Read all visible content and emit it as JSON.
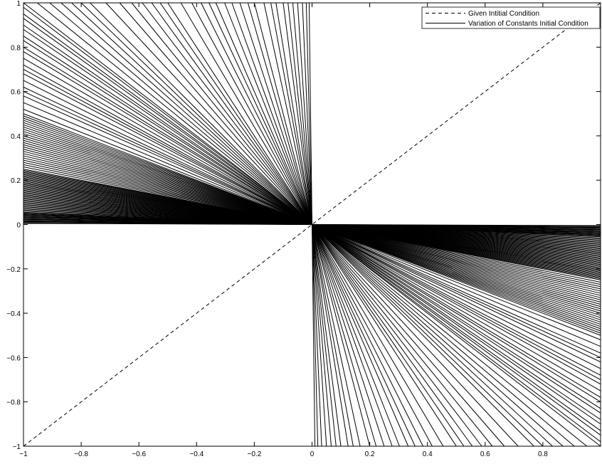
{
  "chart_data": {
    "type": "line",
    "title": "",
    "xlabel": "",
    "ylabel": "",
    "xlim": [
      -1,
      1
    ],
    "ylim": [
      -1,
      1
    ],
    "grid": false,
    "legend_placement": "top-right",
    "x_ticks": [
      "−1",
      "−0.8",
      "−0.6",
      "−0.4",
      "−0.2",
      "0",
      "0.2",
      "0.4",
      "0.6",
      "0.8"
    ],
    "x_tick_values": [
      -1,
      -0.8,
      -0.6,
      -0.4,
      -0.2,
      0,
      0.2,
      0.4,
      0.6,
      0.8
    ],
    "y_ticks": [
      "1",
      "0.8",
      "0.6",
      "0.4",
      "0.2",
      "0",
      "−0.2",
      "−0.4",
      "−0.6",
      "−0.8",
      "−1"
    ],
    "y_tick_values": [
      1,
      0.8,
      0.6,
      0.4,
      0.2,
      0,
      -0.2,
      -0.4,
      -0.6,
      -0.8,
      -1
    ],
    "series": [
      {
        "name": "Given Intitial Condition",
        "style": "dashed",
        "color": "#000000",
        "x": [
          -1,
          1
        ],
        "y": [
          -1,
          1
        ]
      },
      {
        "name": "Variation of Constants Initial Condition",
        "style": "solid",
        "color": "#000000",
        "family": "lines y = m·x through origin, m < 0",
        "slopes": [
          -0.005,
          -0.008,
          -0.012,
          -0.015,
          -0.018,
          -0.022,
          -0.025,
          -0.028,
          -0.032,
          -0.035,
          -0.038,
          -0.042,
          -0.045,
          -0.048,
          -0.052,
          -0.055,
          -0.06,
          -0.065,
          -0.07,
          -0.075,
          -0.08,
          -0.085,
          -0.09,
          -0.095,
          -0.1,
          -0.105,
          -0.11,
          -0.115,
          -0.12,
          -0.125,
          -0.13,
          -0.135,
          -0.14,
          -0.145,
          -0.15,
          -0.155,
          -0.16,
          -0.165,
          -0.17,
          -0.175,
          -0.18,
          -0.185,
          -0.19,
          -0.195,
          -0.2,
          -0.205,
          -0.21,
          -0.215,
          -0.22,
          -0.225,
          -0.23,
          -0.235,
          -0.24,
          -0.245,
          -0.25,
          -0.26,
          -0.27,
          -0.28,
          -0.29,
          -0.3,
          -0.31,
          -0.32,
          -0.33,
          -0.34,
          -0.35,
          -0.36,
          -0.37,
          -0.38,
          -0.39,
          -0.4,
          -0.41,
          -0.42,
          -0.43,
          -0.44,
          -0.45,
          -0.46,
          -0.47,
          -0.48,
          -0.49,
          -0.5,
          -0.52,
          -0.55,
          -0.58,
          -0.6,
          -0.62,
          -0.65,
          -0.68,
          -0.7,
          -0.72,
          -0.75,
          -0.78,
          -0.8,
          -0.83,
          -0.85,
          -0.88,
          -0.9,
          -0.93,
          -0.95,
          -0.98,
          -1.0,
          -1.05,
          -1.1,
          -1.15,
          -1.2,
          -1.25,
          -1.3,
          -1.4,
          -1.5,
          -1.6,
          -1.7,
          -1.8,
          -1.9,
          -2.0,
          -2.2,
          -2.4,
          -2.6,
          -2.8,
          -3.0,
          -3.3,
          -3.6,
          -4.0,
          -4.5,
          -5.0,
          -6.0,
          -7.0,
          -8.0,
          -10.0,
          -12.0,
          -15.0,
          -20.0,
          -30.0,
          -50.0,
          -100.0
        ]
      }
    ]
  }
}
